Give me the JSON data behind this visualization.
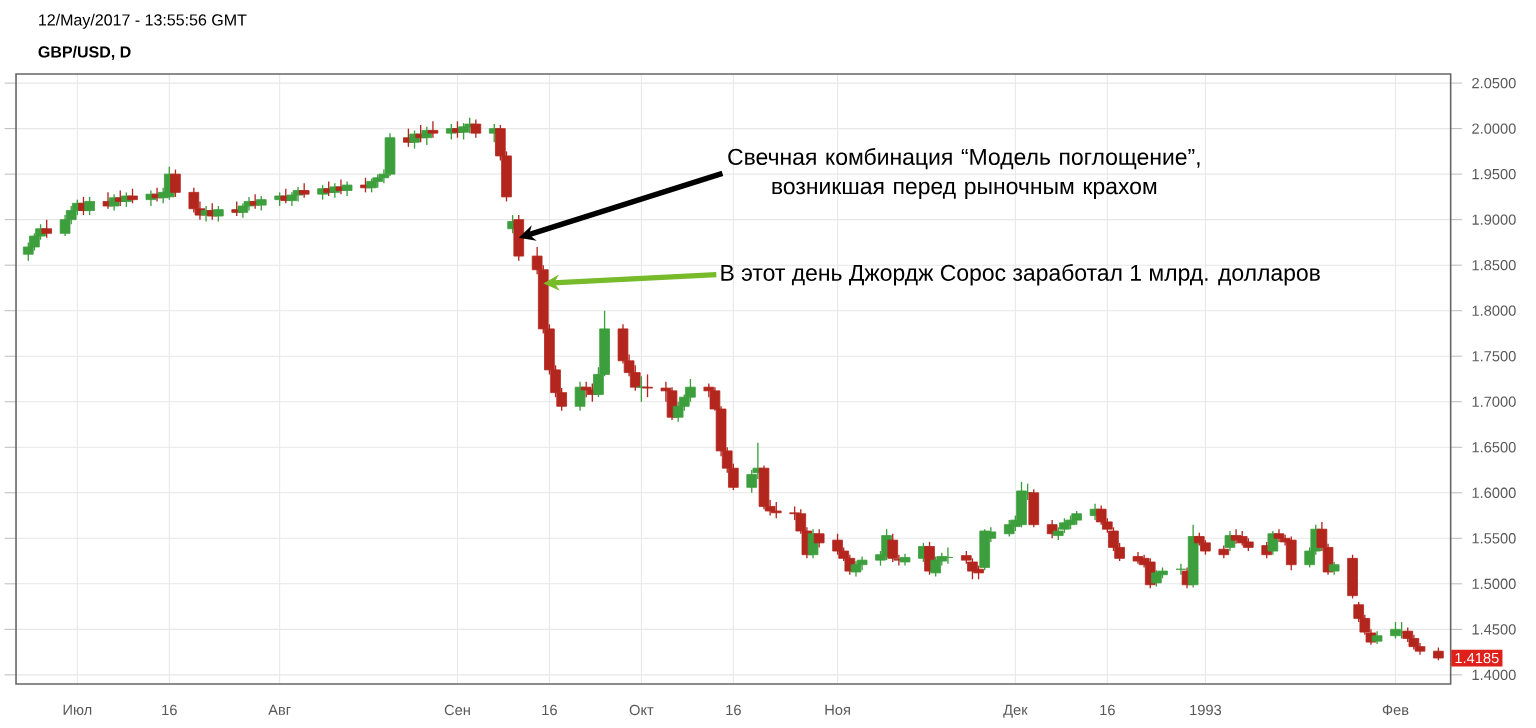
{
  "chart_data": {
    "type": "candlestick",
    "title": "GBP/USD, D",
    "annotations": [
      "12/May/2017 - 13:55:56 GMT",
      {
        "text": "Свечная комбинация “Модель поглощение”, возникшая перед рыночным крахом",
        "x": "1992-09-11",
        "y": 1.88
      },
      {
        "text": "В этот день Джордж Сорос заработал 1 млрд. долларов",
        "x": "1992-09-15",
        "y": 1.83
      },
      {
        "text": "1.4185",
        "x": "1993-02-08",
        "y": 1.4185
      }
    ],
    "x": [
      "1992-06-23",
      "1992-06-24",
      "1992-06-25",
      "1992-06-26",
      "1992-06-29",
      "1992-06-30",
      "1992-07-01",
      "1992-07-02",
      "1992-07-03",
      "1992-07-06",
      "1992-07-07",
      "1992-07-08",
      "1992-07-09",
      "1992-07-10",
      "1992-07-13",
      "1992-07-14",
      "1992-07-15",
      "1992-07-16",
      "1992-07-17",
      "1992-07-20",
      "1992-07-21",
      "1992-07-22",
      "1992-07-23",
      "1992-07-24",
      "1992-07-27",
      "1992-07-28",
      "1992-07-29",
      "1992-07-30",
      "1992-07-31",
      "1992-08-03",
      "1992-08-04",
      "1992-08-05",
      "1992-08-06",
      "1992-08-07",
      "1992-08-10",
      "1992-08-11",
      "1992-08-12",
      "1992-08-13",
      "1992-08-14",
      "1992-08-17",
      "1992-08-18",
      "1992-08-19",
      "1992-08-20",
      "1992-08-21",
      "1992-08-24",
      "1992-08-25",
      "1992-08-26",
      "1992-08-27",
      "1992-08-28",
      "1992-08-31",
      "1992-09-01",
      "1992-09-02",
      "1992-09-03",
      "1992-09-04",
      "1992-09-07",
      "1992-09-08",
      "1992-09-09",
      "1992-09-10",
      "1992-09-11",
      "1992-09-14",
      "1992-09-15",
      "1992-09-16",
      "1992-09-17",
      "1992-09-18",
      "1992-09-21",
      "1992-09-22",
      "1992-09-23",
      "1992-09-24",
      "1992-09-25",
      "1992-09-28",
      "1992-09-29",
      "1992-09-30",
      "1992-10-01",
      "1992-10-02",
      "1992-10-05",
      "1992-10-06",
      "1992-10-07",
      "1992-10-08",
      "1992-10-09",
      "1992-10-12",
      "1992-10-13",
      "1992-10-14",
      "1992-10-15",
      "1992-10-16",
      "1992-10-19",
      "1992-10-20",
      "1992-10-21",
      "1992-10-22",
      "1992-10-23",
      "1992-10-26",
      "1992-10-27",
      "1992-10-28",
      "1992-10-29",
      "1992-10-30",
      "1992-11-02",
      "1992-11-03",
      "1992-11-04",
      "1992-11-05",
      "1992-11-06",
      "1992-11-09",
      "1992-11-10",
      "1992-11-11",
      "1992-11-12",
      "1992-11-13",
      "1992-11-16",
      "1992-11-17",
      "1992-11-18",
      "1992-11-19",
      "1992-11-20",
      "1992-11-23",
      "1992-11-24",
      "1992-11-25",
      "1992-11-26",
      "1992-11-27",
      "1992-11-30",
      "1992-12-01",
      "1992-12-02",
      "1992-12-03",
      "1992-12-04",
      "1992-12-07",
      "1992-12-08",
      "1992-12-09",
      "1992-12-10",
      "1992-12-11",
      "1992-12-14",
      "1992-12-15",
      "1992-12-16",
      "1992-12-17",
      "1992-12-18",
      "1992-12-21",
      "1992-12-22",
      "1992-12-23",
      "1992-12-24",
      "1992-12-25",
      "1992-12-28",
      "1992-12-29",
      "1992-12-30",
      "1992-12-31",
      "1993-01-01",
      "1993-01-04",
      "1993-01-05",
      "1993-01-06",
      "1993-01-07",
      "1993-01-08",
      "1993-01-11",
      "1993-01-12",
      "1993-01-13",
      "1993-01-14",
      "1993-01-15",
      "1993-01-18",
      "1993-01-19",
      "1993-01-20",
      "1993-01-21",
      "1993-01-22",
      "1993-01-25",
      "1993-01-26",
      "1993-01-27",
      "1993-01-28",
      "1993-01-29",
      "1993-02-01",
      "1993-02-02",
      "1993-02-03",
      "1993-02-04",
      "1993-02-05",
      "1993-02-08"
    ],
    "ohlc": [
      [
        1.862,
        1.875,
        1.855,
        1.87
      ],
      [
        1.87,
        1.885,
        1.866,
        1.882
      ],
      [
        1.882,
        1.895,
        1.878,
        1.89
      ],
      [
        1.89,
        1.9,
        1.88,
        1.885
      ],
      [
        1.885,
        1.905,
        1.882,
        1.9
      ],
      [
        1.9,
        1.915,
        1.895,
        1.91
      ],
      [
        1.91,
        1.922,
        1.905,
        1.918
      ],
      [
        1.918,
        1.925,
        1.905,
        1.91
      ],
      [
        1.91,
        1.925,
        1.905,
        1.92
      ],
      [
        1.92,
        1.93,
        1.912,
        1.915
      ],
      [
        1.915,
        1.928,
        1.91,
        1.924
      ],
      [
        1.924,
        1.932,
        1.915,
        1.92
      ],
      [
        1.92,
        1.93,
        1.914,
        1.926
      ],
      [
        1.926,
        1.934,
        1.918,
        1.922
      ],
      [
        1.922,
        1.932,
        1.915,
        1.928
      ],
      [
        1.928,
        1.935,
        1.92,
        1.924
      ],
      [
        1.924,
        1.935,
        1.918,
        1.93
      ],
      [
        1.925,
        1.958,
        1.922,
        1.95
      ],
      [
        1.95,
        1.955,
        1.925,
        1.93
      ],
      [
        1.93,
        1.935,
        1.908,
        1.912
      ],
      [
        1.912,
        1.92,
        1.9,
        1.905
      ],
      [
        1.905,
        1.915,
        1.898,
        1.91
      ],
      [
        1.91,
        1.918,
        1.9,
        1.904
      ],
      [
        1.904,
        1.915,
        1.898,
        1.911
      ],
      [
        1.911,
        1.92,
        1.904,
        1.908
      ],
      [
        1.908,
        1.918,
        1.902,
        1.915
      ],
      [
        1.915,
        1.925,
        1.91,
        1.92
      ],
      [
        1.92,
        1.928,
        1.912,
        1.916
      ],
      [
        1.916,
        1.926,
        1.91,
        1.922
      ],
      [
        1.922,
        1.93,
        1.915,
        1.926
      ],
      [
        1.926,
        1.934,
        1.918,
        1.921
      ],
      [
        1.921,
        1.93,
        1.915,
        1.927
      ],
      [
        1.927,
        1.936,
        1.92,
        1.932
      ],
      [
        1.932,
        1.94,
        1.924,
        1.928
      ],
      [
        1.928,
        1.938,
        1.922,
        1.934
      ],
      [
        1.934,
        1.942,
        1.926,
        1.93
      ],
      [
        1.93,
        1.94,
        1.924,
        1.936
      ],
      [
        1.936,
        1.944,
        1.928,
        1.932
      ],
      [
        1.932,
        1.942,
        1.926,
        1.938
      ],
      [
        1.938,
        1.946,
        1.93,
        1.935
      ],
      [
        1.935,
        1.945,
        1.93,
        1.942
      ],
      [
        1.942,
        1.95,
        1.935,
        1.946
      ],
      [
        1.946,
        1.955,
        1.94,
        1.95
      ],
      [
        1.95,
        1.995,
        1.948,
        1.99
      ],
      [
        1.99,
        2.0,
        1.98,
        1.985
      ],
      [
        1.985,
        1.998,
        1.978,
        1.994
      ],
      [
        1.994,
        2.004,
        1.985,
        1.99
      ],
      [
        1.99,
        2.002,
        1.982,
        1.998
      ],
      [
        1.998,
        2.008,
        1.99,
        1.995
      ],
      [
        1.995,
        2.005,
        1.988,
        2.0
      ],
      [
        2.0,
        2.008,
        1.99,
        1.996
      ],
      [
        1.996,
        2.006,
        1.988,
        2.002
      ],
      [
        2.002,
        2.012,
        1.995,
        2.005
      ],
      [
        2.005,
        2.01,
        1.99,
        1.995
      ],
      [
        1.995,
        2.005,
        1.985,
        2.0
      ],
      [
        2.0,
        2.004,
        1.965,
        1.97
      ],
      [
        1.97,
        1.975,
        1.92,
        1.925
      ],
      [
        1.89,
        1.905,
        1.885,
        1.898
      ],
      [
        1.9,
        1.905,
        1.855,
        1.86
      ],
      [
        1.86,
        1.87,
        1.84,
        1.845
      ],
      [
        1.845,
        1.85,
        1.775,
        1.78
      ],
      [
        1.78,
        1.785,
        1.73,
        1.735
      ],
      [
        1.735,
        1.74,
        1.705,
        1.71
      ],
      [
        1.71,
        1.715,
        1.69,
        1.695
      ],
      [
        1.695,
        1.722,
        1.69,
        1.716
      ],
      [
        1.716,
        1.722,
        1.705,
        1.713
      ],
      [
        1.713,
        1.72,
        1.7,
        1.708
      ],
      [
        1.708,
        1.738,
        1.705,
        1.73
      ],
      [
        1.73,
        1.8,
        1.728,
        1.78
      ],
      [
        1.78,
        1.785,
        1.742,
        1.745
      ],
      [
        1.745,
        1.752,
        1.728,
        1.732
      ],
      [
        1.732,
        1.74,
        1.712,
        1.716
      ],
      [
        1.716,
        1.728,
        1.7,
        1.716
      ],
      [
        1.716,
        1.73,
        1.705,
        1.715
      ],
      [
        1.715,
        1.722,
        1.7,
        1.712
      ],
      [
        1.712,
        1.716,
        1.68,
        1.683
      ],
      [
        1.683,
        1.7,
        1.678,
        1.695
      ],
      [
        1.695,
        1.708,
        1.69,
        1.705
      ],
      [
        1.705,
        1.725,
        1.7,
        1.716
      ],
      [
        1.716,
        1.72,
        1.705,
        1.712
      ],
      [
        1.712,
        1.716,
        1.69,
        1.692
      ],
      [
        1.692,
        1.695,
        1.64,
        1.646
      ],
      [
        1.646,
        1.65,
        1.622,
        1.627
      ],
      [
        1.627,
        1.632,
        1.603,
        1.606
      ],
      [
        1.606,
        1.625,
        1.6,
        1.62
      ],
      [
        1.622,
        1.655,
        1.615,
        1.627
      ],
      [
        1.627,
        1.63,
        1.582,
        1.585
      ],
      [
        1.585,
        1.592,
        1.575,
        1.58
      ],
      [
        1.58,
        1.59,
        1.572,
        1.578
      ],
      [
        1.578,
        1.585,
        1.57,
        1.577
      ],
      [
        1.577,
        1.582,
        1.555,
        1.558
      ],
      [
        1.558,
        1.562,
        1.528,
        1.532
      ],
      [
        1.532,
        1.56,
        1.528,
        1.555
      ],
      [
        1.555,
        1.56,
        1.54,
        1.545
      ],
      [
        1.548,
        1.555,
        1.532,
        1.536
      ],
      [
        1.536,
        1.54,
        1.525,
        1.528
      ],
      [
        1.528,
        1.532,
        1.51,
        1.514
      ],
      [
        1.513,
        1.525,
        1.508,
        1.521
      ],
      [
        1.521,
        1.53,
        1.515,
        1.526
      ],
      [
        1.526,
        1.536,
        1.52,
        1.532
      ],
      [
        1.53,
        1.56,
        1.526,
        1.553
      ],
      [
        1.548,
        1.555,
        1.524,
        1.528
      ],
      [
        1.527,
        1.532,
        1.52,
        1.526
      ],
      [
        1.524,
        1.533,
        1.52,
        1.529
      ],
      [
        1.528,
        1.545,
        1.524,
        1.541
      ],
      [
        1.541,
        1.546,
        1.51,
        1.514
      ],
      [
        1.512,
        1.53,
        1.508,
        1.526
      ],
      [
        1.525,
        1.534,
        1.52,
        1.53
      ],
      [
        1.529,
        1.54,
        1.522,
        1.529
      ],
      [
        1.531,
        1.536,
        1.522,
        1.526
      ],
      [
        1.524,
        1.528,
        1.505,
        1.514
      ],
      [
        1.516,
        1.52,
        1.505,
        1.512
      ],
      [
        1.518,
        1.56,
        1.515,
        1.558
      ],
      [
        1.55,
        1.562,
        1.546,
        1.557
      ],
      [
        1.555,
        1.57,
        1.552,
        1.565
      ],
      [
        1.563,
        1.575,
        1.558,
        1.57
      ],
      [
        1.565,
        1.612,
        1.562,
        1.602
      ],
      [
        1.6,
        1.61,
        1.592,
        1.6
      ],
      [
        1.6,
        1.604,
        1.562,
        1.565
      ],
      [
        1.565,
        1.57,
        1.55,
        1.555
      ],
      [
        1.553,
        1.562,
        1.548,
        1.558
      ],
      [
        1.56,
        1.572,
        1.556,
        1.567
      ],
      [
        1.565,
        1.575,
        1.56,
        1.57
      ],
      [
        1.57,
        1.58,
        1.565,
        1.577
      ],
      [
        1.575,
        1.588,
        1.57,
        1.582
      ],
      [
        1.582,
        1.586,
        1.565,
        1.568
      ],
      [
        1.568,
        1.572,
        1.556,
        1.56
      ],
      [
        1.558,
        1.562,
        1.536,
        1.54
      ],
      [
        1.54,
        1.545,
        1.525,
        1.528
      ],
      [
        1.53,
        1.535,
        1.522,
        1.525
      ],
      [
        1.528,
        1.532,
        1.518,
        1.521
      ],
      [
        1.524,
        1.528,
        1.495,
        1.499
      ],
      [
        1.501,
        1.515,
        1.497,
        1.512
      ],
      [
        1.51,
        1.518,
        1.506,
        1.514
      ],
      [
        1.516,
        1.522,
        1.51,
        1.516
      ],
      [
        1.514,
        1.518,
        1.495,
        1.499
      ],
      [
        1.499,
        1.565,
        1.496,
        1.552
      ],
      [
        1.552,
        1.556,
        1.542,
        1.545
      ],
      [
        1.545,
        1.548,
        1.532,
        1.536
      ],
      [
        1.538,
        1.542,
        1.528,
        1.532
      ],
      [
        1.54,
        1.558,
        1.536,
        1.553
      ],
      [
        1.553,
        1.56,
        1.544,
        1.548
      ],
      [
        1.552,
        1.558,
        1.542,
        1.545
      ],
      [
        1.546,
        1.55,
        1.536,
        1.54
      ],
      [
        1.542,
        1.546,
        1.528,
        1.532
      ],
      [
        1.536,
        1.558,
        1.532,
        1.555
      ],
      [
        1.555,
        1.56,
        1.546,
        1.55
      ],
      [
        1.55,
        1.554,
        1.542,
        1.546
      ],
      [
        1.548,
        1.552,
        1.515,
        1.521
      ],
      [
        1.521,
        1.54,
        1.518,
        1.536
      ],
      [
        1.536,
        1.565,
        1.532,
        1.56
      ],
      [
        1.56,
        1.568,
        1.536,
        1.54
      ],
      [
        1.54,
        1.544,
        1.51,
        1.513
      ],
      [
        1.514,
        1.524,
        1.51,
        1.521
      ],
      [
        1.528,
        1.532,
        1.484,
        1.487
      ],
      [
        1.477,
        1.48,
        1.458,
        1.462
      ],
      [
        1.462,
        1.466,
        1.444,
        1.447
      ],
      [
        1.446,
        1.45,
        1.433,
        1.436
      ],
      [
        1.437,
        1.448,
        1.434,
        1.443
      ],
      [
        1.443,
        1.458,
        1.44,
        1.45
      ],
      [
        1.447,
        1.458,
        1.44,
        1.447
      ],
      [
        1.448,
        1.452,
        1.436,
        1.44
      ],
      [
        1.44,
        1.444,
        1.428,
        1.431
      ],
      [
        1.431,
        1.435,
        1.422,
        1.426
      ],
      [
        1.426,
        1.43,
        1.416,
        1.4185
      ]
    ],
    "xlim": [
      "1992-06-21",
      "1993-02-10"
    ],
    "xticks": [
      {
        "value": "1992-07-01",
        "label": "Июл"
      },
      {
        "value": "1992-07-16",
        "label": "16"
      },
      {
        "value": "1992-08-03",
        "label": "Авг"
      },
      {
        "value": "1992-09-01",
        "label": "Сен"
      },
      {
        "value": "1992-09-16",
        "label": "16"
      },
      {
        "value": "1992-10-01",
        "label": "Окт"
      },
      {
        "value": "1992-10-16",
        "label": "16"
      },
      {
        "value": "1992-11-02",
        "label": "Ноя"
      },
      {
        "value": "1992-12-01",
        "label": "Дек"
      },
      {
        "value": "1992-12-16",
        "label": "16"
      },
      {
        "value": "1993-01-01",
        "label": "1993"
      },
      {
        "value": "1993-02-01",
        "label": "Фев"
      }
    ],
    "ylim": [
      1.39,
      2.06
    ],
    "yticks": [
      {
        "value": 1.4,
        "label": "1.4000"
      },
      {
        "value": 1.45,
        "label": "1.4500"
      },
      {
        "value": 1.5,
        "label": "1.5000"
      },
      {
        "value": 1.55,
        "label": "1.5500"
      },
      {
        "value": 1.6,
        "label": "1.6000"
      },
      {
        "value": 1.65,
        "label": "1.6500"
      },
      {
        "value": 1.7,
        "label": "1.7000"
      },
      {
        "value": 1.75,
        "label": "1.7500"
      },
      {
        "value": 1.8,
        "label": "1.8000"
      },
      {
        "value": 1.85,
        "label": "1.8500"
      },
      {
        "value": 1.9,
        "label": "1.9000"
      },
      {
        "value": 1.95,
        "label": "1.9500"
      },
      {
        "value": 2.0,
        "label": "2.0000"
      },
      {
        "value": 2.05,
        "label": "2.0500"
      }
    ],
    "grid": true
  }
}
